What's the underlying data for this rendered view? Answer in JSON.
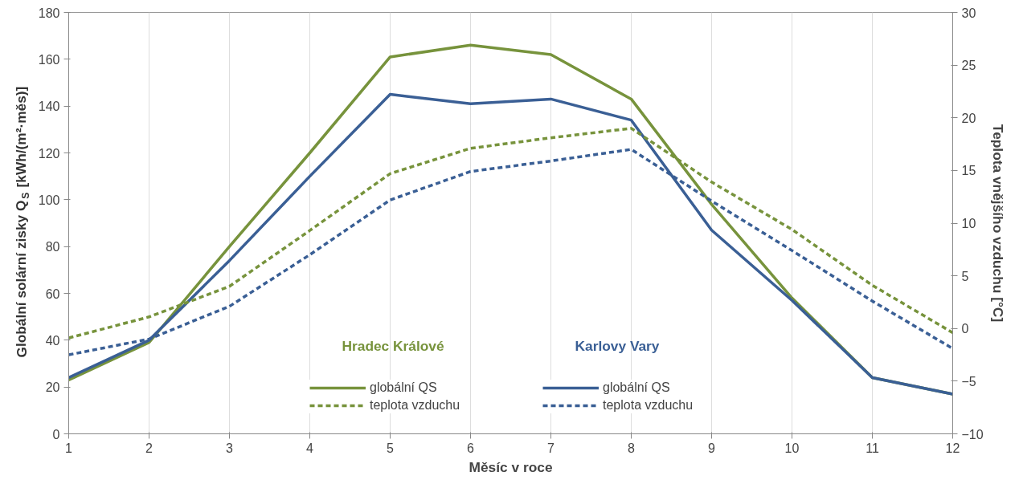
{
  "chart_data": {
    "type": "line",
    "xlabel": "Měsíc v roce",
    "ylabel": "Globální solární zisky Q$_{S}$ [kWh/(m²·měs)]",
    "y2label": "Teplota vnějšího vzduchu [°C]",
    "x": [
      1,
      2,
      3,
      4,
      5,
      6,
      7,
      8,
      9,
      10,
      11,
      12
    ],
    "xlim": [
      1,
      12
    ],
    "xticks": [
      1,
      2,
      3,
      4,
      5,
      6,
      7,
      8,
      9,
      10,
      11,
      12
    ],
    "ylim": [
      0,
      180
    ],
    "yticks": [
      0,
      20,
      40,
      60,
      80,
      100,
      120,
      140,
      160,
      180
    ],
    "y2lim": [
      -10,
      30
    ],
    "y2ticks": [
      -10,
      -5,
      0,
      5,
      10,
      15,
      20,
      25,
      30
    ],
    "grid": "x",
    "legend": "bottom",
    "line_style": "solid",
    "annotations": [
      "Hradec Králové",
      "Karlovy Vary"
    ],
    "series": [
      {
        "name": "globální QS",
        "color": "#77933c",
        "values": [
          23,
          39,
          80,
          120,
          161,
          166,
          162,
          143,
          98,
          58,
          24,
          17
        ]
      },
      {
        "name": "globální QS",
        "color": "#3a5f95",
        "values": [
          24,
          40,
          74,
          110,
          145,
          141,
          143,
          134,
          87,
          57,
          24,
          17
        ]
      },
      {
        "name": "teplota vzduchu",
        "color": "#77933c",
        "axis": "y2",
        "line_style": "dashed",
        "values": [
          -0.9,
          1.1,
          4.0,
          9.3,
          14.7,
          17.1,
          18.1,
          19.0,
          13.9,
          9.4,
          4.1,
          -0.4
        ]
      },
      {
        "name": "teplota vzduchu",
        "color": "#3a5f95",
        "axis": "y2",
        "line_style": "dashed",
        "values": [
          -2.5,
          -1.0,
          2.1,
          7.0,
          12.2,
          14.9,
          15.9,
          17.0,
          12.1,
          7.4,
          2.6,
          -1.9
        ]
      }
    ]
  }
}
